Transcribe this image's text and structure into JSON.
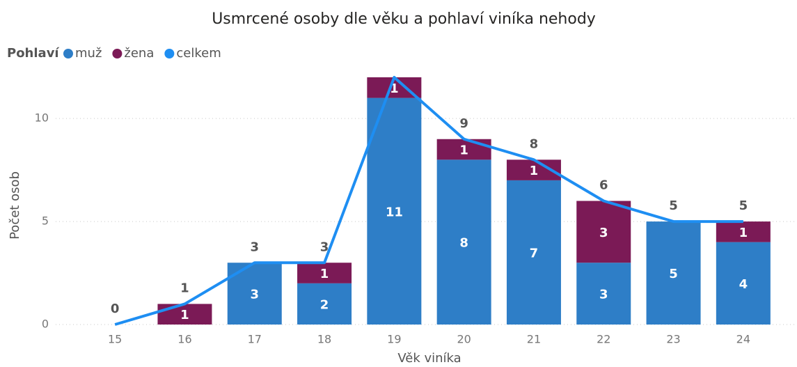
{
  "chart_data": {
    "type": "bar_line",
    "title": "Usmrcené osoby dle věku a pohlaví viníka nehody",
    "legend_title": "Pohlaví",
    "x_label": "Věk viníka",
    "y_label": "Počet osob",
    "categories": [
      15,
      16,
      17,
      18,
      19,
      20,
      21,
      22,
      23,
      24
    ],
    "series": [
      {
        "name": "muž",
        "type": "bar",
        "color": "#2e7ec7",
        "values": [
          0,
          0,
          3,
          2,
          11,
          8,
          7,
          3,
          5,
          4
        ]
      },
      {
        "name": "žena",
        "type": "bar",
        "color": "#7b1a56",
        "values": [
          0,
          1,
          0,
          1,
          1,
          1,
          1,
          3,
          0,
          1
        ]
      },
      {
        "name": "celkem",
        "type": "line",
        "color": "#1e8ef2",
        "values": [
          0,
          1,
          3,
          3,
          12,
          9,
          8,
          6,
          5,
          5
        ],
        "value_labels": [
          "0",
          "1",
          "3",
          "3",
          null,
          "9",
          "8",
          "6",
          "5",
          "5"
        ]
      }
    ],
    "ylim": [
      0,
      12
    ],
    "yticks": [
      0,
      5,
      10
    ],
    "grid": true,
    "stacked": true,
    "legend": "top-left"
  }
}
